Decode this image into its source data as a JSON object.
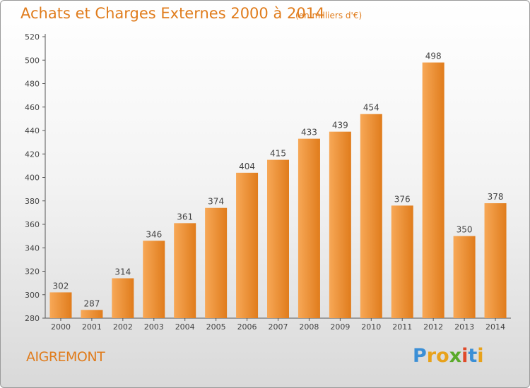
{
  "chart_data": {
    "type": "bar",
    "title": "Achats et Charges Externes 2000 à 2014",
    "subtitle": "(en milliers d'€)",
    "categories": [
      "2000",
      "2001",
      "2002",
      "2003",
      "2004",
      "2005",
      "2006",
      "2007",
      "2008",
      "2009",
      "2010",
      "2011",
      "2012",
      "2013",
      "2014"
    ],
    "values": [
      302,
      287,
      314,
      346,
      361,
      374,
      404,
      415,
      433,
      439,
      454,
      376,
      498,
      350,
      378
    ],
    "ylim": [
      280,
      520
    ],
    "yticks": [
      280,
      300,
      320,
      340,
      360,
      380,
      400,
      420,
      440,
      460,
      480,
      500,
      520
    ],
    "xlabel": "",
    "ylabel": "",
    "grid": false,
    "bar_color_light": "#f7a857",
    "bar_color_dark": "#e07c1c",
    "text_color": "#e07c1c"
  },
  "footer": {
    "commune": "AIGREMONT",
    "logo_letters": [
      "P",
      "r",
      "o",
      "x",
      "i",
      "t",
      "i"
    ],
    "logo_colors": [
      "#3b8fd6",
      "#e8a21b",
      "#e8a21b",
      "#5aaa2a",
      "#e04a2a",
      "#3b8fd6",
      "#e8a21b"
    ]
  }
}
